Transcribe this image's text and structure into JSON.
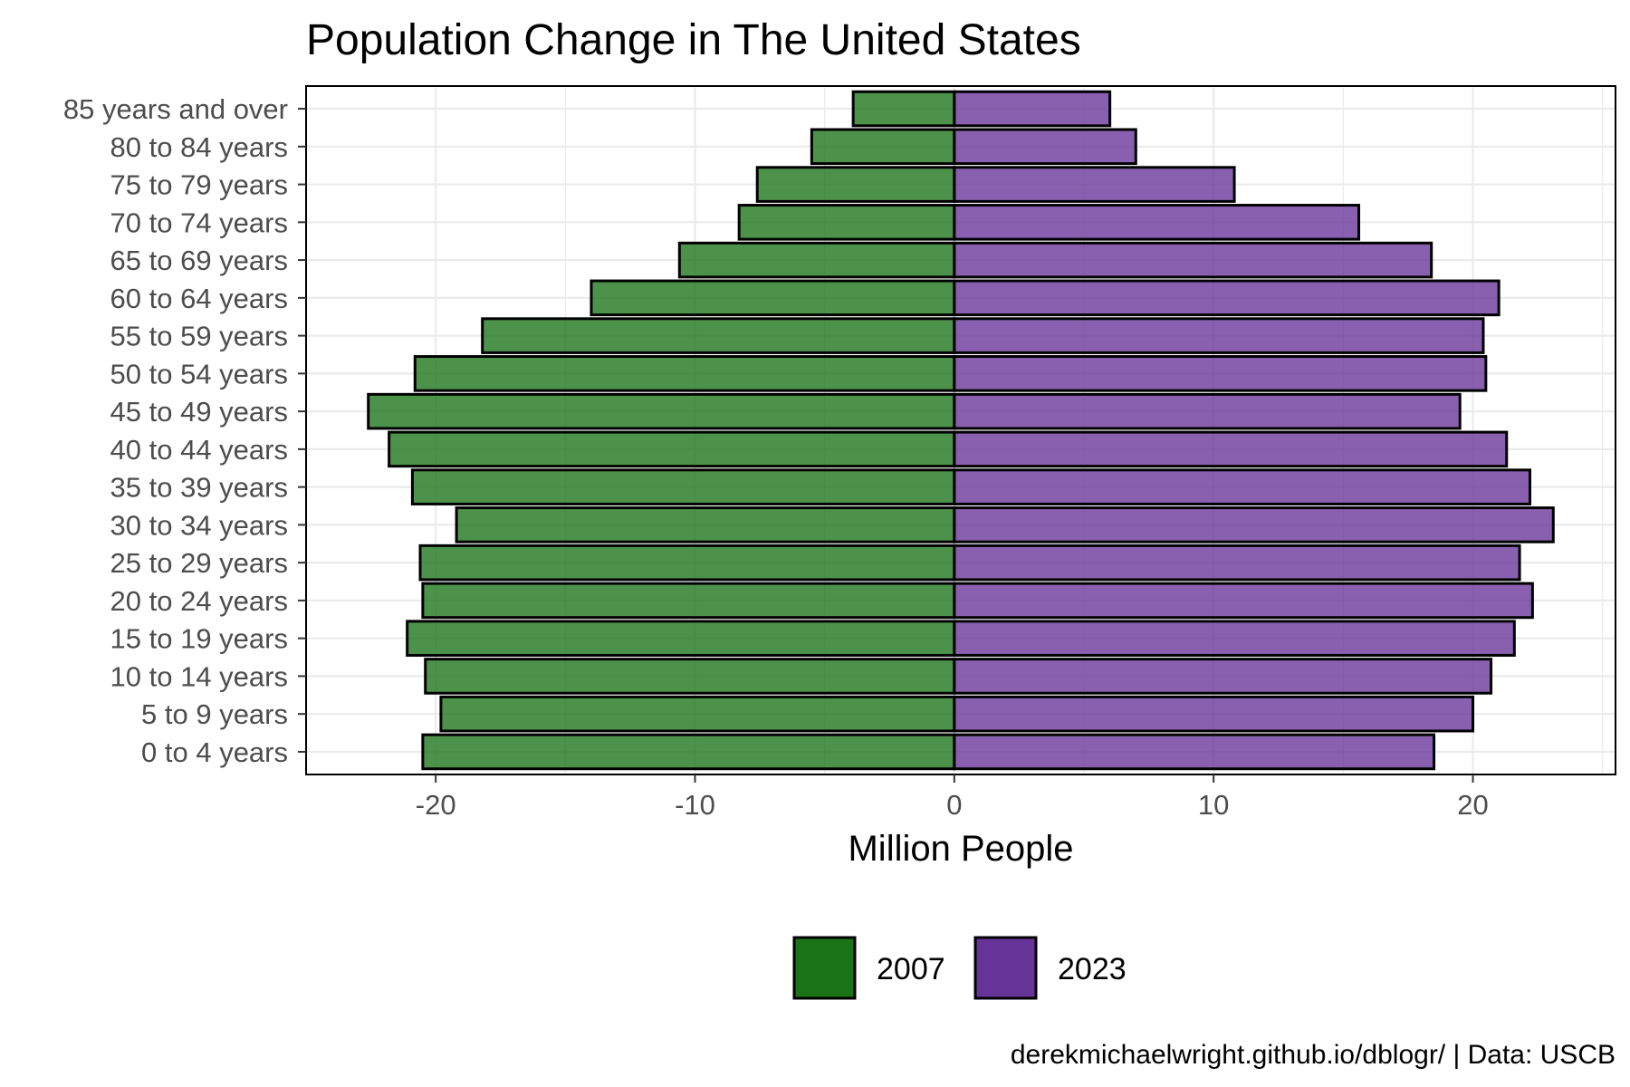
{
  "chart_data": {
    "type": "bar",
    "orientation": "horizontal",
    "title": "Population Change in The United States",
    "xlabel": "Million People",
    "ylabel": "",
    "caption": "derekmichaelwright.github.io/dblogr/ | Data: USCB",
    "xlim": [
      -25,
      25.5
    ],
    "xticks": [
      -20,
      -10,
      0,
      10,
      20
    ],
    "xtick_labels": [
      "-20",
      "-10",
      "0",
      "10",
      "20"
    ],
    "grid": true,
    "legend_position": "bottom",
    "categories": [
      "0 to 4 years",
      "5 to 9 years",
      "10 to 14 years",
      "15 to 19 years",
      "20 to 24 years",
      "25 to 29 years",
      "30 to 34 years",
      "35 to 39 years",
      "40 to 44 years",
      "45 to 49 years",
      "50 to 54 years",
      "55 to 59 years",
      "60 to 64 years",
      "65 to 69 years",
      "70 to 74 years",
      "75 to 79 years",
      "80 to 84 years",
      "85 years and over"
    ],
    "series": [
      {
        "name": "2007",
        "color": "#1a7317",
        "values": [
          -20.5,
          -19.8,
          -20.4,
          -21.1,
          -20.5,
          -20.6,
          -19.2,
          -20.9,
          -21.8,
          -22.6,
          -20.8,
          -18.2,
          -14.0,
          -10.6,
          -8.3,
          -7.6,
          -5.5,
          -3.9
        ]
      },
      {
        "name": "2023",
        "color": "#663399",
        "values": [
          18.5,
          20.0,
          20.7,
          21.6,
          22.3,
          21.8,
          23.1,
          22.2,
          21.3,
          19.5,
          20.5,
          20.4,
          21.0,
          18.4,
          15.6,
          10.8,
          7.0,
          6.0
        ]
      }
    ]
  }
}
